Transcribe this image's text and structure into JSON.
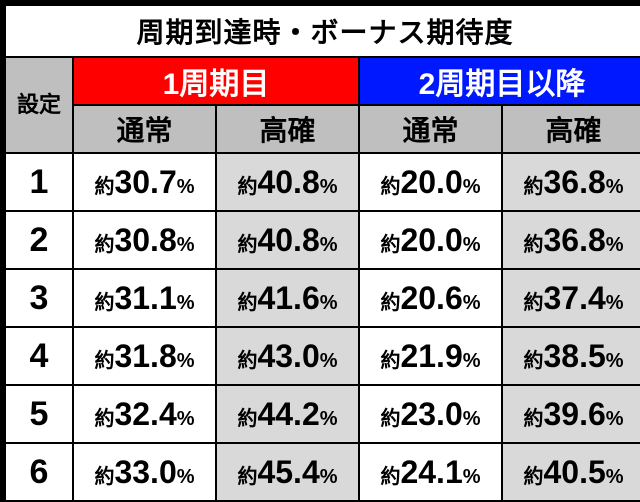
{
  "title": "周期到達時・ボーナス期待度",
  "settei_label": "設定",
  "cycles": {
    "first": "1周期目",
    "later": "2周期目以降"
  },
  "sub": {
    "normal": "通常",
    "high": "高確"
  },
  "prefix": "約",
  "pct": "%",
  "colors": {
    "title_bg": "#ffffff",
    "row_label_bg": "#ffffff",
    "header_gray": "#bfbfbf",
    "cycle_red": "#ff0000",
    "cycle_blue": "#0018ff",
    "cell_light": "#ffffff",
    "cell_dark": "#d9d9d9",
    "border": "#000000",
    "text_dark": "#000000",
    "text_light": "#ffffff"
  },
  "font_sizes": {
    "title": 28,
    "cycle": 30,
    "sub": 28,
    "row_label": 34,
    "prefix": 20,
    "num": 32,
    "pct": 20,
    "settei": 22
  },
  "row_labels": [
    "1",
    "2",
    "3",
    "4",
    "5",
    "6"
  ],
  "columns": [
    "c1_normal",
    "c1_high",
    "c2_normal",
    "c2_high"
  ],
  "rows": [
    {
      "c1_normal": "30.7",
      "c1_high": "40.8",
      "c2_normal": "20.0",
      "c2_high": "36.8"
    },
    {
      "c1_normal": "30.8",
      "c1_high": "40.8",
      "c2_normal": "20.0",
      "c2_high": "36.8"
    },
    {
      "c1_normal": "31.1",
      "c1_high": "41.6",
      "c2_normal": "20.6",
      "c2_high": "37.4"
    },
    {
      "c1_normal": "31.8",
      "c1_high": "43.0",
      "c2_normal": "21.9",
      "c2_high": "38.5"
    },
    {
      "c1_normal": "32.4",
      "c1_high": "44.2",
      "c2_normal": "23.0",
      "c2_high": "39.6"
    },
    {
      "c1_normal": "33.0",
      "c1_high": "45.4",
      "c2_normal": "24.1",
      "c2_high": "40.5"
    }
  ]
}
